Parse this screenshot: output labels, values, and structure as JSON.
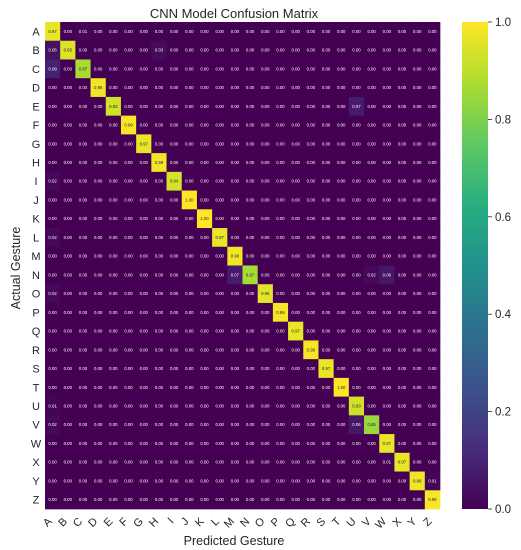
{
  "chart_data": {
    "type": "heatmap",
    "title": "CNN Model Confusion Matrix",
    "xlabel": "Predicted Gesture",
    "ylabel": "Actual Gesture",
    "labels": [
      "A",
      "B",
      "C",
      "D",
      "E",
      "F",
      "G",
      "H",
      "I",
      "J",
      "K",
      "L",
      "M",
      "N",
      "O",
      "P",
      "Q",
      "R",
      "S",
      "T",
      "U",
      "V",
      "W",
      "X",
      "Y",
      "Z"
    ],
    "colormap": "viridis",
    "vmin": 0,
    "vmax": 1,
    "colorbar_ticks": [
      "0.0",
      "0.2",
      "0.4",
      "0.6",
      "0.8",
      "1.0"
    ],
    "diagonal": [
      0.97,
      0.95,
      0.87,
      0.98,
      0.93,
      0.99,
      0.97,
      0.98,
      0.94,
      1.0,
      1.0,
      0.97,
      0.98,
      0.87,
      0.96,
      0.99,
      0.97,
      0.99,
      0.97,
      1.0,
      0.93,
      0.85,
      0.97,
      0.97,
      0.98,
      0.99
    ],
    "off_diagonal_highlights": [
      {
        "actual": "C",
        "predicted": "A",
        "value": 0.09
      },
      {
        "actual": "E",
        "predicted": "U",
        "value": 0.07
      },
      {
        "actual": "N",
        "predicted": "M",
        "value": 0.07
      },
      {
        "actual": "N",
        "predicted": "W",
        "value": 0.06
      },
      {
        "actual": "V",
        "predicted": "U",
        "value": 0.06
      },
      {
        "actual": "B",
        "predicted": "A",
        "value": 0.05
      },
      {
        "actual": "B",
        "predicted": "H",
        "value": 0.03
      },
      {
        "actual": "N",
        "predicted": "V",
        "value": 0.02
      },
      {
        "actual": "I",
        "predicted": "A",
        "value": 0.02
      },
      {
        "actual": "L",
        "predicted": "A",
        "value": 0.02
      },
      {
        "actual": "U",
        "predicted": "A",
        "value": 0.01
      },
      {
        "actual": "V",
        "predicted": "A",
        "value": 0.02
      },
      {
        "actual": "A",
        "predicted": "C",
        "value": 0.01
      },
      {
        "actual": "O",
        "predicted": "A",
        "value": 0.02
      },
      {
        "actual": "X",
        "predicted": "W",
        "value": 0.01
      },
      {
        "actual": "Y",
        "predicted": "Z",
        "value": 0.01
      }
    ],
    "cell_value_format": "0.00",
    "grid": false,
    "legend": "colorbar-right"
  }
}
